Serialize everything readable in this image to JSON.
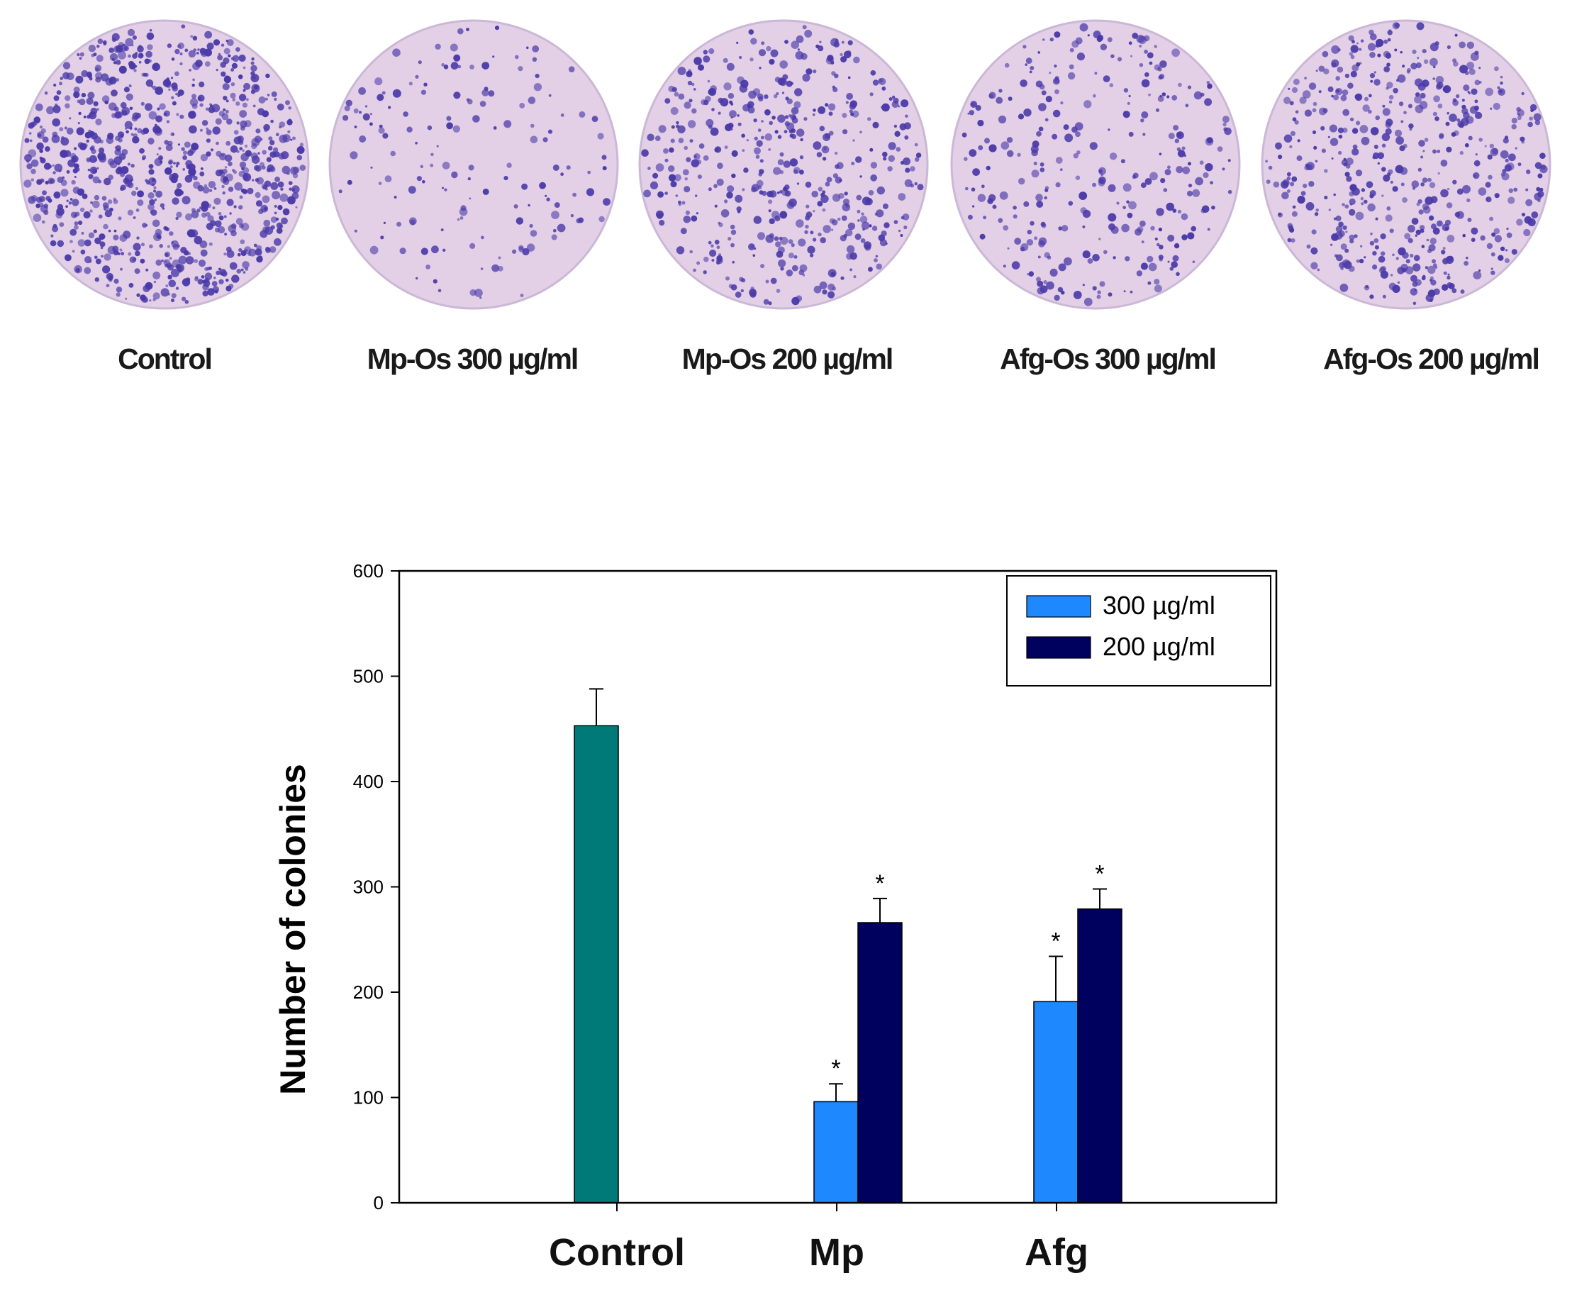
{
  "plates": {
    "labels": [
      "Control",
      "Mp-Os 300 µg/ml",
      "Mp-Os 200 µg/ml",
      "Afg-Os 300 µg/ml",
      "Afg-Os 200 µg/ml"
    ],
    "densities": [
      1.0,
      0.18,
      0.55,
      0.35,
      0.6
    ],
    "colony_color": "#4a3aa8",
    "plate_color": "#e3cfe6"
  },
  "chart_data": {
    "type": "bar",
    "categories": [
      "Control",
      "Mp",
      "Afg"
    ],
    "series": [
      {
        "name": "",
        "values": [
          453,
          null,
          null
        ],
        "errors": [
          35,
          null,
          null
        ],
        "color": "#007a78",
        "significant": [
          false,
          false,
          false
        ]
      },
      {
        "name": "300 µg/ml",
        "values": [
          null,
          96,
          191
        ],
        "errors": [
          null,
          17,
          43
        ],
        "color": "#1e88ff",
        "significant": [
          false,
          true,
          true
        ]
      },
      {
        "name": "200 µg/ml",
        "values": [
          null,
          266,
          279
        ],
        "errors": [
          null,
          23,
          19
        ],
        "color": "#00005e",
        "significant": [
          false,
          true,
          true
        ]
      }
    ],
    "significance_marker": "*",
    "ylabel": "Number of colonies",
    "xlabel": "",
    "ylim": [
      0,
      600
    ],
    "yticks": [
      "0",
      "100",
      "200",
      "300",
      "400",
      "500",
      "600"
    ],
    "legend": {
      "position": "top-right",
      "entries": [
        "300 µg/ml",
        "200 µg/ml"
      ]
    },
    "grid": false
  }
}
